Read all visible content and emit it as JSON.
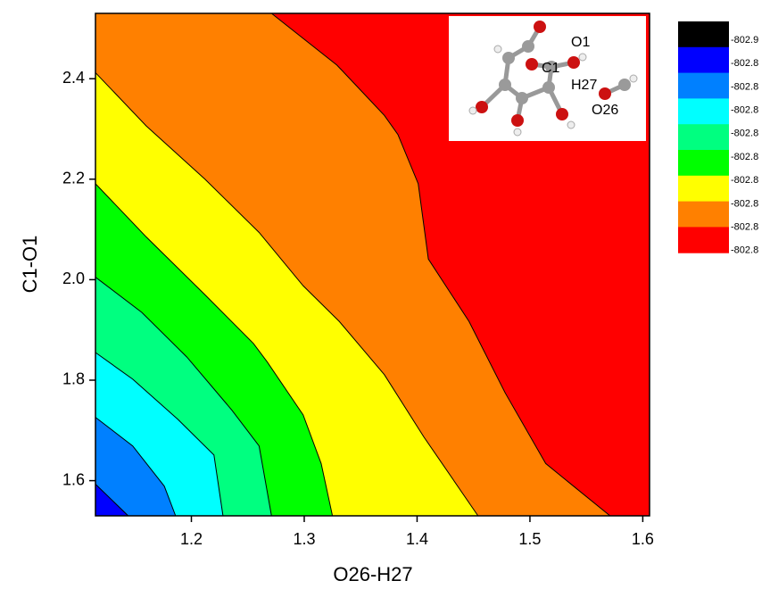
{
  "chart_data": {
    "type": "contour",
    "x_label": "O26-H27",
    "y_label": "C1-O1",
    "xlim": [
      1.115,
      1.606
    ],
    "ylim": [
      1.53,
      2.53
    ],
    "xticks": [
      1.2,
      1.3,
      1.4,
      1.5,
      1.6
    ],
    "yticks": [
      1.6,
      1.8,
      {
        "value": 2,
        "label": "2.0"
      },
      2.2,
      2.4
    ],
    "colorbar": {
      "colors": [
        "#000000",
        "#0000ff",
        "#0080ff",
        "#00ffff",
        "#00ff80",
        "#00ff00",
        "#ffff00",
        "#ff8000",
        "#ff0000"
      ],
      "levels": [
        {
          "value": -802.86,
          "label": "-802.9"
        },
        {
          "value": -802.84,
          "label": "-802.8"
        },
        {
          "value": -802.83,
          "label": "-802.8"
        },
        {
          "value": -802.82,
          "label": "-802.8"
        },
        {
          "value": -802.81,
          "label": "-802.8"
        },
        {
          "value": -802.8,
          "label": "-802.8"
        },
        {
          "value": -802.79,
          "label": "-802.8"
        },
        {
          "value": -802.78,
          "label": "-802.8"
        },
        {
          "value": -802.77,
          "label": "-802.8"
        },
        {
          "value": -802.76,
          "label": "-802.8"
        }
      ]
    },
    "contours": [
      {
        "level": -802.77,
        "fill": "#ff8000",
        "x": [
          1.271,
          1.329,
          1.371,
          1.383,
          1.401,
          1.41,
          1.446,
          1.478,
          1.514,
          1.571
        ],
        "y": [
          2.53,
          2.427,
          2.327,
          2.289,
          2.191,
          2.041,
          1.917,
          1.775,
          1.634,
          1.53
        ]
      },
      {
        "level": -802.78,
        "fill": "#ffff00",
        "x": [
          1.115,
          1.16,
          1.212,
          1.26,
          1.299,
          1.331,
          1.371,
          1.406,
          1.454
        ],
        "y": [
          2.412,
          2.306,
          2.2,
          2.094,
          1.988,
          1.917,
          1.811,
          1.687,
          1.53
        ]
      },
      {
        "level": -802.79,
        "fill": "#00ff00",
        "x": [
          1.115,
          1.16,
          1.212,
          1.255,
          1.267,
          1.299,
          1.315,
          1.325
        ],
        "y": [
          2.191,
          2.085,
          1.97,
          1.873,
          1.837,
          1.731,
          1.634,
          1.53
        ]
      },
      {
        "level": -802.8,
        "fill": "#00ff80",
        "x": [
          1.115,
          1.156,
          1.196,
          1.236,
          1.26,
          1.271
        ],
        "y": [
          2.005,
          1.935,
          1.846,
          1.74,
          1.669,
          1.53
        ]
      },
      {
        "level": -802.81,
        "fill": "#00ffff",
        "x": [
          1.115,
          1.148,
          1.188,
          1.22,
          1.228
        ],
        "y": [
          1.855,
          1.802,
          1.722,
          1.651,
          1.53
        ]
      },
      {
        "level": -802.82,
        "fill": "#0080ff",
        "x": [
          1.115,
          1.148,
          1.176,
          1.186
        ],
        "y": [
          1.726,
          1.669,
          1.589,
          1.53
        ]
      },
      {
        "level": -802.83,
        "fill": "#0000ff",
        "x": [
          1.115,
          1.144
        ],
        "y": [
          1.593,
          1.53
        ]
      }
    ],
    "inset": {
      "labels": [
        "O1",
        "C1",
        "H27",
        "O26"
      ]
    }
  }
}
